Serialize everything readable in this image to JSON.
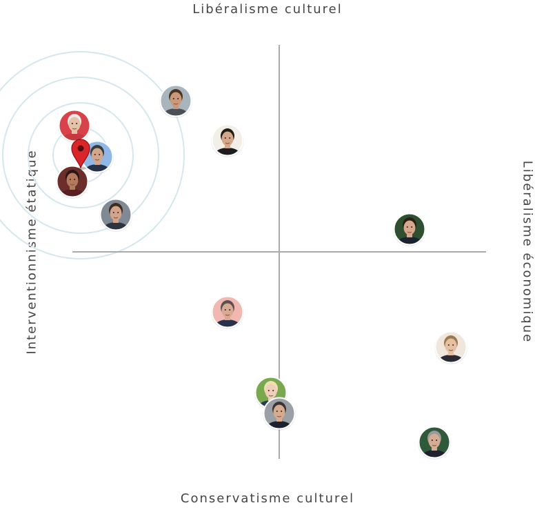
{
  "axes": {
    "top": "Libéralisme culturel",
    "bottom": "Conservatisme culturel",
    "left": "Interventionnisme étatique",
    "right": "Libéralisme économique"
  },
  "colors": {
    "axis_line": "#aaaaaa",
    "rings": "#d6e6ee",
    "marker": "#d9262b"
  },
  "user_marker": {
    "icon": "map-pin-icon",
    "x": -9.6,
    "y": 4.8
  },
  "chart_data": {
    "type": "scatter",
    "xlim": [
      -10,
      10
    ],
    "ylim": [
      -10,
      10
    ],
    "grid": false,
    "points": [
      {
        "id": "candidate-1",
        "x": -5.0,
        "y": 7.3,
        "skin": "#c99a7a",
        "hair": "#4a3525",
        "bg": "#a9b5bd",
        "shirt": "#4b4f57"
      },
      {
        "id": "candidate-2",
        "x": -2.5,
        "y": 5.4,
        "skin": "#d4a68a",
        "hair": "#231b16",
        "bg": "#f2efe9",
        "shirt": "#1d1d1d"
      },
      {
        "id": "candidate-3",
        "x": -9.9,
        "y": 6.1,
        "skin": "#e3c2a7",
        "hair": "#eaeaea",
        "bg": "#d8424a",
        "shirt": "#c53a40"
      },
      {
        "id": "candidate-4",
        "x": -8.8,
        "y": 4.6,
        "skin": "#d2a68c",
        "hair": "#3a3a3a",
        "bg": "#8fb8e8",
        "shirt": "#26324a"
      },
      {
        "id": "candidate-5",
        "x": -10.0,
        "y": 3.4,
        "skin": "#b37a5e",
        "hair": "#2a1714",
        "bg": "#6b2e2a",
        "shirt": "#5a1e22"
      },
      {
        "id": "candidate-6",
        "x": -7.9,
        "y": 1.8,
        "skin": "#d1a48b",
        "hair": "#3e2b22",
        "bg": "#7f8a94",
        "shirt": "#2c3440"
      },
      {
        "id": "candidate-7",
        "x": 6.3,
        "y": 1.1,
        "skin": "#d6a98c",
        "hair": "#2a1f18",
        "bg": "#2f5030",
        "shirt": "#1b2331"
      },
      {
        "id": "candidate-8",
        "x": -2.5,
        "y": -2.9,
        "skin": "#d9a994",
        "hair": "#5a5050",
        "bg": "#f0b8b0",
        "shirt": "#28324a"
      },
      {
        "id": "candidate-9",
        "x": 8.3,
        "y": -4.6,
        "skin": "#e6c0a3",
        "hair": "#9b7a52",
        "bg": "#efe7dc",
        "shirt": "#2a2a35"
      },
      {
        "id": "candidate-10",
        "x": -0.4,
        "y": -6.8,
        "skin": "#efcfb8",
        "hair": "#f0dfb0",
        "bg": "#7aa84f",
        "shirt": "#2b3b5a"
      },
      {
        "id": "candidate-11",
        "x": 0.0,
        "y": -7.8,
        "skin": "#d7ab90",
        "hair": "#3b3431",
        "bg": "#9aa0a6",
        "shirt": "#1c2230"
      },
      {
        "id": "candidate-12",
        "x": 7.5,
        "y": -9.2,
        "skin": "#d4ab93",
        "hair": "#9a9a9a",
        "bg": "#2f5a3a",
        "shirt": "#1d2130"
      }
    ]
  }
}
